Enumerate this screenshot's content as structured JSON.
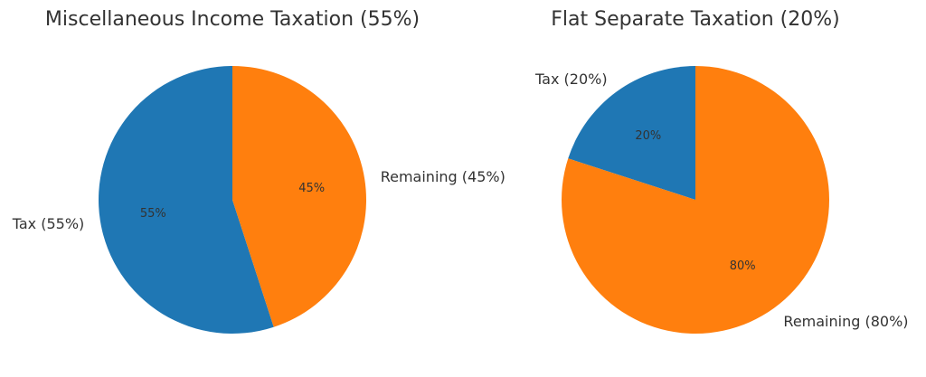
{
  "chart_data": [
    {
      "type": "pie",
      "title": "Miscellaneous Income Taxation (55%)",
      "start_angle_deg": 90,
      "direction": "counterclockwise",
      "slices": [
        {
          "label": "Tax (55%)",
          "value": 55,
          "pct_label": "55%",
          "color": "#1f77b4"
        },
        {
          "label": "Remaining (45%)",
          "value": 45,
          "pct_label": "45%",
          "color": "#ff7f0e"
        }
      ]
    },
    {
      "type": "pie",
      "title": "Flat Separate Taxation (20%)",
      "start_angle_deg": 90,
      "direction": "counterclockwise",
      "slices": [
        {
          "label": "Tax (20%)",
          "value": 20,
          "pct_label": "20%",
          "color": "#1f77b4"
        },
        {
          "label": "Remaining (80%)",
          "value": 80,
          "pct_label": "80%",
          "color": "#ff7f0e"
        }
      ]
    }
  ]
}
